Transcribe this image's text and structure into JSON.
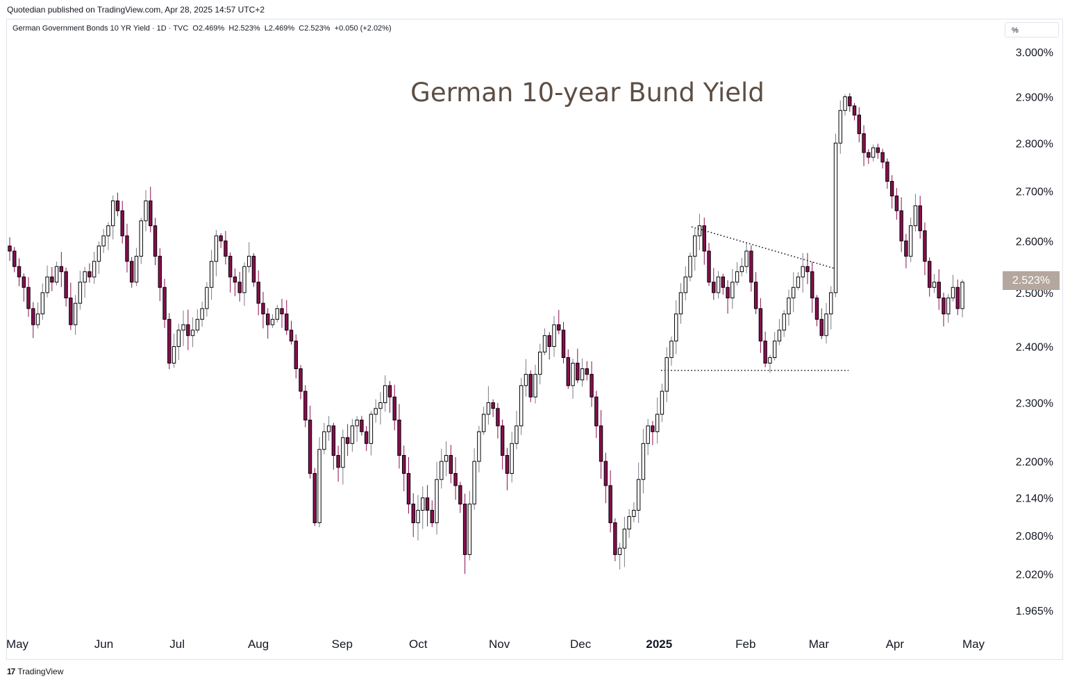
{
  "banner": "Quotedian published on TradingView.com, Apr 28, 2025 14:57 UTC+2",
  "legend": "German Government Bonds 10 YR Yield · 1D · TVC  O2.469%  H2.523%  L2.469%  C2.523%  +0.050 (+2.02%)",
  "unit": "%",
  "footer": {
    "logo": "17",
    "brand": "TradingView"
  },
  "colors": {
    "up": "#ffffff",
    "down": "#880e4f",
    "outline": "#000000",
    "wick_up": "#787b86",
    "wick_down": "#880e4f",
    "last_price_bg": "#b4a79d",
    "title_color": "#5d4e44"
  },
  "chart_data": {
    "type": "candlestick",
    "title": "German 10-year Bund Yield",
    "last_price_label": "2.523%",
    "y_ticks": [
      "3.000%",
      "2.900%",
      "2.800%",
      "2.700%",
      "2.600%",
      "2.500%",
      "2.400%",
      "2.300%",
      "2.200%",
      "2.140%",
      "2.080%",
      "2.020%",
      "1.965%"
    ],
    "y_tick_values": [
      3.0,
      2.9,
      2.8,
      2.7,
      2.6,
      2.5,
      2.4,
      2.3,
      2.2,
      2.14,
      2.08,
      2.02,
      1.965
    ],
    "x_ticks": [
      "May",
      "Jun",
      "Jul",
      "Aug",
      "Sep",
      "Oct",
      "Nov",
      "Dec",
      "2025",
      "Feb",
      "Mar",
      "Apr",
      "May"
    ],
    "x_tick_dates": [
      "2024-05-01",
      "2024-06-03",
      "2024-07-01",
      "2024-08-01",
      "2024-09-02",
      "2024-10-01",
      "2024-11-01",
      "2024-12-02",
      "2025-01-01",
      "2025-02-03",
      "2025-03-03",
      "2025-04-01",
      "2025-05-01"
    ],
    "bold_ticks": [
      "2025"
    ],
    "closes": [
      2.58,
      2.55,
      2.53,
      2.51,
      2.47,
      2.44,
      2.46,
      2.5,
      2.53,
      2.52,
      2.55,
      2.54,
      2.49,
      2.44,
      2.48,
      2.52,
      2.54,
      2.53,
      2.56,
      2.59,
      2.61,
      2.63,
      2.68,
      2.66,
      2.61,
      2.56,
      2.52,
      2.57,
      2.64,
      2.68,
      2.63,
      2.57,
      2.51,
      2.45,
      2.37,
      2.4,
      2.43,
      2.44,
      2.42,
      2.43,
      2.45,
      2.47,
      2.51,
      2.56,
      2.61,
      2.6,
      2.57,
      2.53,
      2.52,
      2.5,
      2.55,
      2.57,
      2.52,
      2.48,
      2.46,
      2.44,
      2.45,
      2.47,
      2.46,
      2.43,
      2.41,
      2.36,
      2.32,
      2.27,
      2.18,
      2.1,
      2.22,
      2.25,
      2.26,
      2.21,
      2.19,
      2.24,
      2.23,
      2.26,
      2.27,
      2.25,
      2.23,
      2.28,
      2.29,
      2.3,
      2.33,
      2.31,
      2.27,
      2.21,
      2.18,
      2.13,
      2.1,
      2.12,
      2.14,
      2.12,
      2.1,
      2.17,
      2.2,
      2.21,
      2.18,
      2.16,
      2.13,
      2.05,
      2.13,
      2.2,
      2.25,
      2.28,
      2.3,
      2.29,
      2.26,
      2.21,
      2.18,
      2.23,
      2.26,
      2.33,
      2.35,
      2.31,
      2.35,
      2.39,
      2.42,
      2.4,
      2.44,
      2.43,
      2.38,
      2.33,
      2.37,
      2.34,
      2.36,
      2.35,
      2.31,
      2.26,
      2.2,
      2.16,
      2.1,
      2.05,
      2.06,
      2.09,
      2.11,
      2.12,
      2.17,
      2.23,
      2.26,
      2.25,
      2.28,
      2.32,
      2.38,
      2.41,
      2.46,
      2.5,
      2.53,
      2.57,
      2.61,
      2.63,
      2.58,
      2.52,
      2.5,
      2.53,
      2.51,
      2.49,
      2.52,
      2.54,
      2.55,
      2.58,
      2.52,
      2.47,
      2.41,
      2.37,
      2.38,
      2.41,
      2.43,
      2.46,
      2.49,
      2.51,
      2.53,
      2.55,
      2.54,
      2.49,
      2.45,
      2.42,
      2.46,
      2.5,
      2.8,
      2.87,
      2.9,
      2.88,
      2.86,
      2.82,
      2.78,
      2.77,
      2.79,
      2.78,
      2.76,
      2.72,
      2.69,
      2.66,
      2.6,
      2.57,
      2.63,
      2.67,
      2.62,
      2.56,
      2.51,
      2.52,
      2.49,
      2.46,
      2.49,
      2.51,
      2.47,
      2.52
    ]
  }
}
